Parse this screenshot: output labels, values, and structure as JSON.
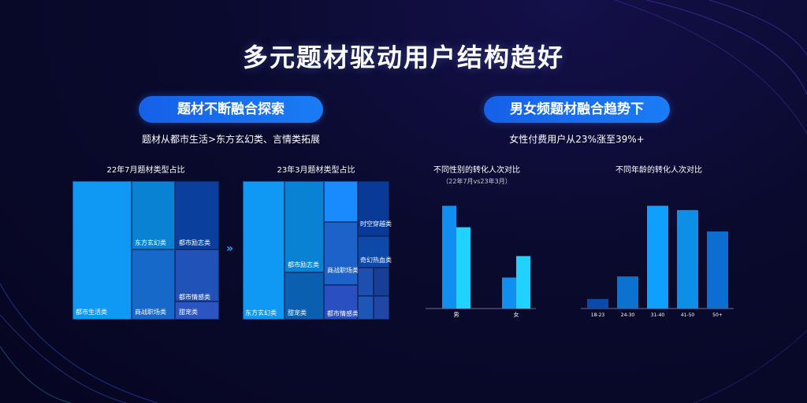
{
  "title": "多元题材驱动用户结构趋好",
  "left": {
    "pill": "题材不断融合探索",
    "subtitle": "题材从都市生活>东方玄幻类、言情类拓展"
  },
  "right": {
    "pill": "男女频题材融合趋势下",
    "subtitle": "女性付费用户从23%涨至39%+"
  },
  "arrow_icon": "»",
  "chart_data": [
    {
      "type": "treemap",
      "title": "22年7月题材类型占比",
      "cells": [
        {
          "label": "都市生活类",
          "color": "#0f99f5"
        },
        {
          "label": "东方玄幻类",
          "color": "#0a82d4"
        },
        {
          "label": "都市励志类",
          "color": "#0b3f9e"
        },
        {
          "label": "商战职场类",
          "color": "#1769c9"
        },
        {
          "label": "都市情感类",
          "color": "#2152b8"
        },
        {
          "label": "甜宠类",
          "color": "#2c55c2"
        }
      ]
    },
    {
      "type": "treemap",
      "title": "23年3月题材类型占比",
      "cells": [
        {
          "label": "东方玄幻类",
          "color": "#0f99f5"
        },
        {
          "label": "都市励志类",
          "color": "#0a82d4"
        },
        {
          "label": "甜宠类",
          "color": "#0a5fb0"
        },
        {
          "label": "都市生活类",
          "color": "#1a8aff"
        },
        {
          "label": "商战职场类",
          "color": "#1c62c8"
        },
        {
          "label": "都市情感类",
          "color": "#2a4fc0"
        },
        {
          "label": "时空穿越类",
          "color": "#0a3a98"
        },
        {
          "label": "奇幻热血类",
          "color": "#0d49a8"
        },
        {
          "label": "",
          "color": "#1d4fae"
        },
        {
          "label": "",
          "color": "#173f96"
        },
        {
          "label": "",
          "color": "#1e56b5"
        },
        {
          "label": "",
          "color": "#2046a6"
        }
      ]
    },
    {
      "type": "bar",
      "title": "不同性别的转化人次对比",
      "note": "（22年7月vs23年3月）",
      "categories": [
        "男",
        "女"
      ],
      "series": [
        {
          "values": [
            96,
            29
          ],
          "color": "#0f8fef"
        },
        {
          "values": [
            76,
            49
          ],
          "color": "#1fd2ff"
        }
      ],
      "ylim": [
        0,
        100
      ]
    },
    {
      "type": "bar",
      "title": "不同年龄的转化人次对比",
      "categories": [
        "18-23",
        "24-30",
        "31-40",
        "41-50",
        "50+"
      ],
      "values": [
        9,
        30,
        96,
        92,
        72
      ],
      "colors": [
        "#0a4aa8",
        "#0b72cf",
        "#0fa0ff",
        "#0d8fe8",
        "#0b6ed0"
      ],
      "ylim": [
        0,
        100
      ]
    }
  ]
}
